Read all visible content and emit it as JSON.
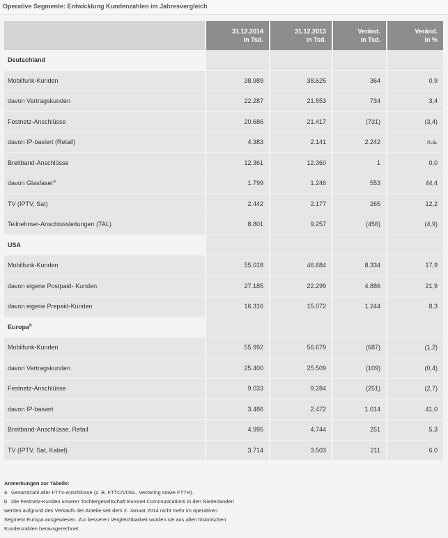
{
  "title": "Operative Segmente: Entwicklung Kundenzahlen im Jahresvergleich",
  "columns": [
    {
      "l1": "31.12.2014",
      "l2": "in Tsd."
    },
    {
      "l1": "31.12.2013",
      "l2": "in Tsd."
    },
    {
      "l1": "Veränd.",
      "l2": "in Tsd."
    },
    {
      "l1": "Veränd.",
      "l2": "in %"
    }
  ],
  "sections": [
    {
      "name": "Deutschland",
      "sup": "",
      "rows": [
        {
          "label": "Mobilfunk-Kunden",
          "sup": "",
          "v": [
            "38.989",
            "38.625",
            "364",
            "0,9"
          ]
        },
        {
          "label": "davon Vertragskunden",
          "sup": "",
          "v": [
            "22.287",
            "21.553",
            "734",
            "3,4"
          ]
        },
        {
          "label": "Festnetz-Anschlüsse",
          "sup": "",
          "v": [
            "20.686",
            "21.417",
            "(731)",
            "(3,4)"
          ]
        },
        {
          "label": "davon IP-basiert (Retail)",
          "sup": "",
          "v": [
            "4.383",
            "2.141",
            "2.242",
            "n.a."
          ]
        },
        {
          "label": "Breitband-Anschlüsse",
          "sup": "",
          "v": [
            "12.361",
            "12.360",
            "1",
            "0,0"
          ]
        },
        {
          "label": "davon Glasfaser",
          "sup": "a",
          "v": [
            "1.799",
            "1.246",
            "553",
            "44,4"
          ]
        },
        {
          "label": "TV (IPTV, Sat)",
          "sup": "",
          "v": [
            "2.442",
            "2.177",
            "265",
            "12,2"
          ]
        },
        {
          "label": "Teilnehmer-Anschlussleitungen (TAL)",
          "sup": "",
          "v": [
            "8.801",
            "9.257",
            "(456)",
            "(4,9)"
          ]
        }
      ]
    },
    {
      "name": "USA",
      "sup": "",
      "rows": [
        {
          "label": "Mobilfunk-Kunden",
          "sup": "",
          "v": [
            "55.018",
            "46.684",
            "8.334",
            "17,9"
          ]
        },
        {
          "label": "davon eigene Postpaid- Kunden",
          "sup": "",
          "v": [
            "27.185",
            "22.299",
            "4.886",
            "21,9"
          ]
        },
        {
          "label": "davon eigene Prepaid-Kunden",
          "sup": "",
          "v": [
            "16.316",
            "15.072",
            "1.244",
            "8,3"
          ]
        }
      ]
    },
    {
      "name": "Europa",
      "sup": "b",
      "rows": [
        {
          "label": "Mobilfunk-Kunden",
          "sup": "",
          "v": [
            "55.992",
            "56.679",
            "(687)",
            "(1,2)"
          ]
        },
        {
          "label": "davon Vertragskunden",
          "sup": "",
          "v": [
            "25.400",
            "25.509",
            "(109)",
            "(0,4)"
          ]
        },
        {
          "label": "Festnetz-Anschlüsse",
          "sup": "",
          "v": [
            "9.033",
            "9.284",
            "(251)",
            "(2,7)"
          ]
        },
        {
          "label": "davon IP-basiert",
          "sup": "",
          "v": [
            "3.486",
            "2.472",
            "1.014",
            "41,0"
          ]
        },
        {
          "label": "Breitband-Anschlüsse, Retail",
          "sup": "",
          "v": [
            "4.995",
            "4.744",
            "251",
            "5,3"
          ]
        },
        {
          "label": "TV (IPTV, Sat, Kabel)",
          "sup": "",
          "v": [
            "3.714",
            "3.503",
            "211",
            "6,0"
          ]
        }
      ]
    }
  ],
  "notes": {
    "heading": "Anmerkungen zur Tabelle:",
    "items": [
      {
        "marker": "a",
        "lines": [
          "Gesamtzahl aller FTTx-Anschlüsse (z. B. FTTC/VDSL, Vectoring sowie FTTH)."
        ]
      },
      {
        "marker": "b",
        "lines": [
          "Die Festnetz-Kunden unserer Tochtergesellschaft Euronet Communications in den Niederlanden"
        ]
      }
    ],
    "continuation": [
      "werden aufgrund des Verkaufs der Anteile seit dem 2. Januar 2014 nicht mehr im operativen",
      "Segment Europa ausgewiesen. Zur besseren Vergleichbarkeit wurden sie aus allen historischen",
      "Kundenzahlen herausgerechnet."
    ]
  }
}
